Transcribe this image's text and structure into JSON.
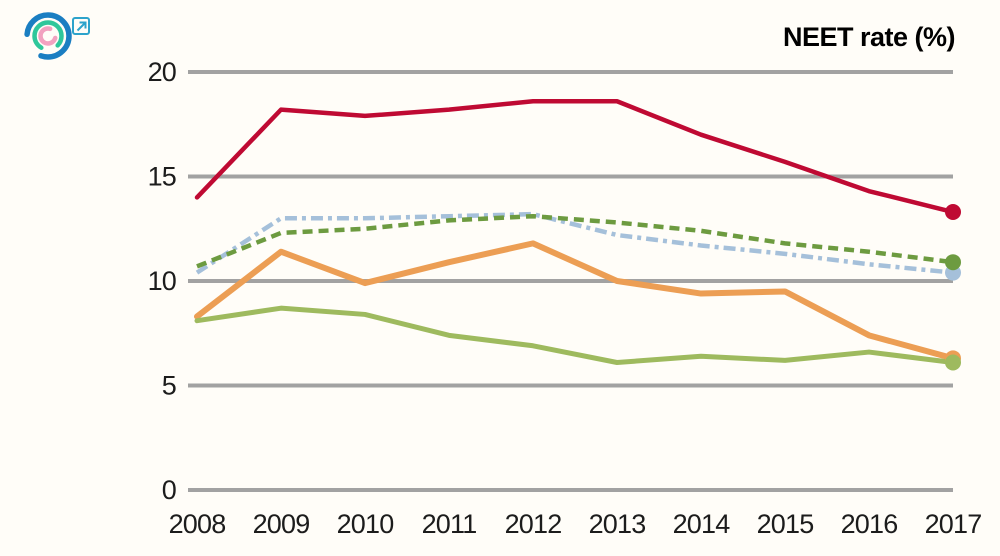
{
  "branding": {
    "logo_icon": "concentric-rings-logo",
    "external_link_icon": "arrow-up-right-square",
    "logo_colors": {
      "outer_ring": "#1b7ec2",
      "middle_ring": "#2fc79b",
      "inner_ring": "#f2a2c0",
      "link": "#2da3cb"
    }
  },
  "chart_data": {
    "type": "line",
    "title": "NEET rate (%)",
    "x": [
      "2008",
      "2009",
      "2010",
      "2011",
      "2012",
      "2013",
      "2014",
      "2015",
      "2016",
      "2017"
    ],
    "xlabel": "",
    "ylabel": "NEET rate (%)",
    "ylim": [
      0,
      20
    ],
    "yticks": [
      0,
      5,
      10,
      15,
      20
    ],
    "grid": "horizontal",
    "gridline_color": "#a2a2a2",
    "legend": "none",
    "series": [
      {
        "id": "light-blue",
        "color": "#a5c0da",
        "line_style": "dash-dot",
        "end_dot": true,
        "values": [
          10.4,
          13.0,
          13.0,
          13.1,
          13.2,
          12.2,
          11.7,
          11.3,
          10.8,
          10.4
        ]
      },
      {
        "id": "dark-green",
        "color": "#6d9b40",
        "line_style": "dashed",
        "end_dot": true,
        "values": [
          10.7,
          12.3,
          12.5,
          12.9,
          13.1,
          12.8,
          12.4,
          11.8,
          11.4,
          10.9
        ]
      },
      {
        "id": "dark-red",
        "color": "#bf0a33",
        "line_style": "solid",
        "end_dot": true,
        "values": [
          14.0,
          18.2,
          17.9,
          18.2,
          18.6,
          18.6,
          17.0,
          15.7,
          14.3,
          13.3
        ]
      },
      {
        "id": "orange",
        "color": "#ec9e54",
        "line_style": "solid",
        "end_dot": true,
        "values": [
          8.3,
          11.4,
          9.9,
          10.9,
          11.8,
          10.0,
          9.4,
          9.5,
          7.4,
          6.3
        ]
      },
      {
        "id": "light-green",
        "color": "#9eba5e",
        "line_style": "solid",
        "end_dot": true,
        "values": [
          8.1,
          8.7,
          8.4,
          7.4,
          6.9,
          6.1,
          6.4,
          6.2,
          6.6,
          6.1
        ]
      }
    ]
  }
}
